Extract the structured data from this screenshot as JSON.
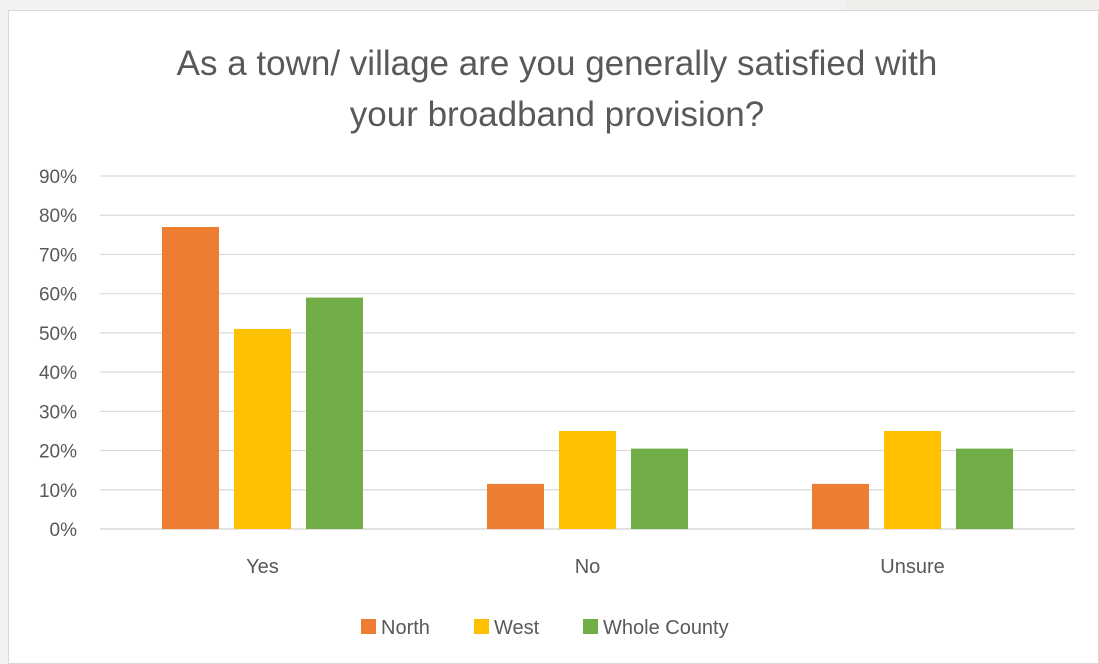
{
  "chart_data": {
    "type": "bar",
    "title_lines": [
      "As a town/ village are you generally satisfied with",
      "your broadband provision?"
    ],
    "categories": [
      "Yes",
      "No",
      "Unsure"
    ],
    "series": [
      {
        "name": "North",
        "color": "#ed7d31",
        "values": [
          77,
          11.5,
          11.5
        ]
      },
      {
        "name": "West",
        "color": "#ffc000",
        "values": [
          51,
          25,
          25
        ]
      },
      {
        "name": "Whole County",
        "color": "#70ad47",
        "values": [
          59,
          20.5,
          20.5
        ]
      }
    ],
    "ylim": [
      0,
      90
    ],
    "yticks": [
      "0%",
      "10%",
      "20%",
      "30%",
      "40%",
      "50%",
      "60%",
      "70%",
      "80%",
      "90%"
    ],
    "grid": true,
    "legend_position": "bottom"
  }
}
